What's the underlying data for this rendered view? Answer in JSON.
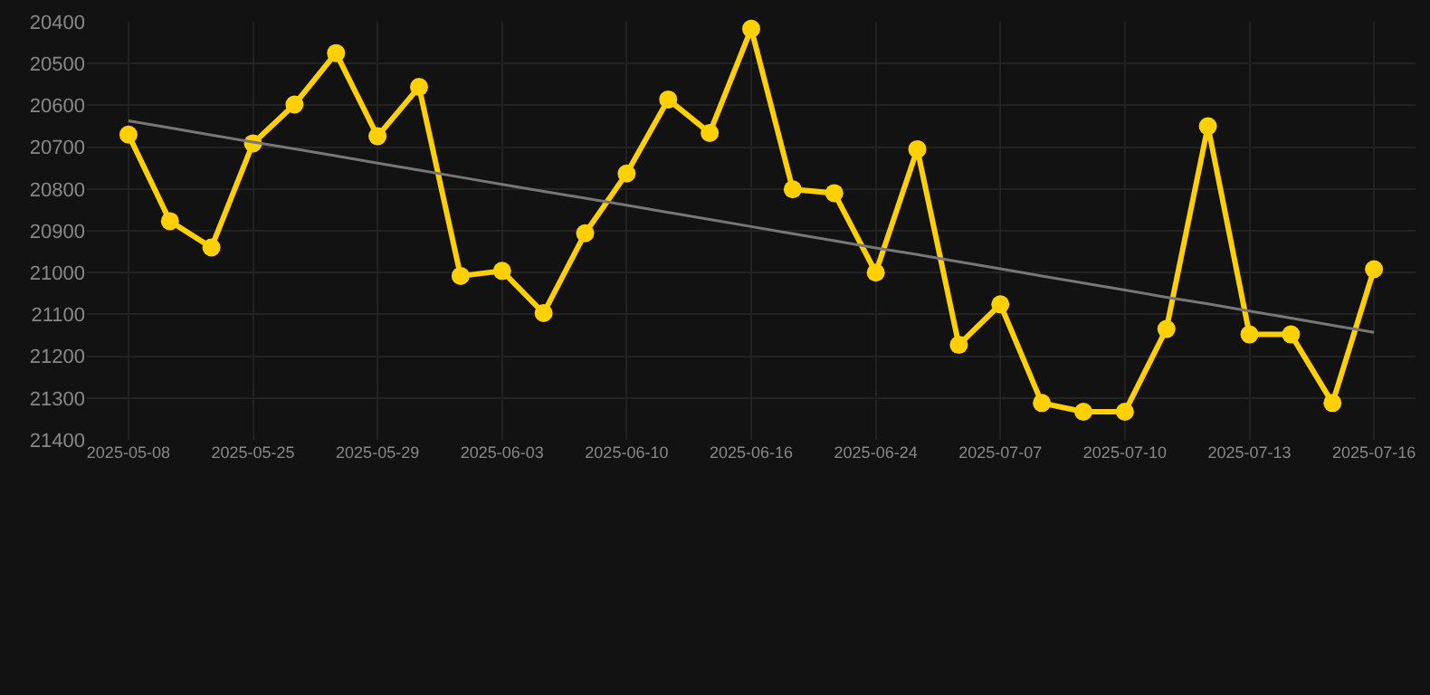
{
  "chart_data": {
    "type": "line",
    "categories": [
      "2025-05-08",
      null,
      null,
      "2025-05-25",
      null,
      null,
      "2025-05-29",
      null,
      null,
      "2025-06-03",
      null,
      null,
      "2025-06-10",
      null,
      null,
      "2025-06-16",
      null,
      null,
      "2025-06-24",
      null,
      null,
      "2025-07-07",
      null,
      null,
      "2025-07-10",
      null,
      null,
      "2025-07-13",
      null,
      null,
      "2025-07-16"
    ],
    "series": [
      {
        "color": "#ffd000",
        "marker": "circle",
        "values": [
          20670,
          20877,
          20940,
          20691,
          20598,
          20475,
          20674,
          20556,
          21008,
          20996,
          21097,
          20906,
          20763,
          20586,
          20666,
          20417,
          20801,
          20810,
          21000,
          20705,
          21173,
          21076,
          21312,
          21333,
          21333,
          21135,
          20650,
          21148,
          21148,
          21312,
          20992
        ]
      },
      {
        "color": "#777777",
        "marker": "none",
        "values": [
          20637,
          20654,
          20671,
          20688,
          20704,
          20721,
          20738,
          20755,
          20772,
          20789,
          20806,
          20822,
          20839,
          20856,
          20873,
          20890,
          20907,
          20924,
          20941,
          20957,
          20974,
          20991,
          21008,
          21025,
          21042,
          21059,
          21075,
          21092,
          21109,
          21126,
          21143
        ]
      }
    ],
    "ylim": [
      21400,
      20400
    ],
    "yticks": [
      20400,
      20500,
      20600,
      20700,
      20800,
      20900,
      21000,
      21100,
      21200,
      21300,
      21400
    ],
    "grid": true,
    "line_style": "solid"
  }
}
